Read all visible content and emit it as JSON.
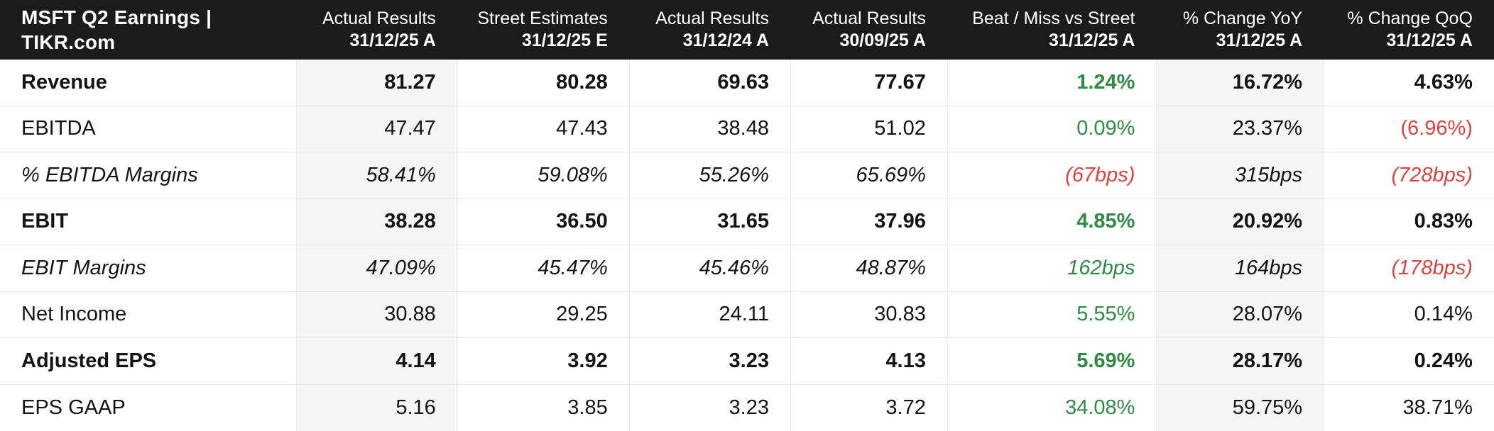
{
  "colors": {
    "header_bg": "#1b1b1b",
    "header_text": "#ffffff",
    "positive": "#2e8b46",
    "negative": "#d9453f",
    "column_shade": "#f5f5f5",
    "row_divider": "#e9e9e9"
  },
  "chart_data": {
    "type": "table",
    "title": "MSFT Q2 Earnings | TIKR.com",
    "columns": [
      {
        "label": "Actual Results",
        "sub": "31/12/25 A"
      },
      {
        "label": "Street Estimates",
        "sub": "31/12/25 E"
      },
      {
        "label": "Actual Results",
        "sub": "31/12/24 A"
      },
      {
        "label": "Actual Results",
        "sub": "30/09/25 A"
      },
      {
        "label": "Beat / Miss vs Street",
        "sub": "31/12/25 A"
      },
      {
        "label": "% Change YoY",
        "sub": "31/12/25 A"
      },
      {
        "label": "% Change QoQ",
        "sub": "31/12/25 A"
      }
    ],
    "rows": [
      {
        "label": "Revenue",
        "style": "bold",
        "values": [
          "81.27",
          "80.28",
          "69.63",
          "77.67",
          "1.24%",
          "16.72%",
          "4.63%"
        ]
      },
      {
        "label": "EBITDA",
        "style": "normal",
        "values": [
          "47.47",
          "47.43",
          "38.48",
          "51.02",
          "0.09%",
          "23.37%",
          "(6.96%)"
        ]
      },
      {
        "label": "% EBITDA Margins",
        "style": "italic",
        "values": [
          "58.41%",
          "59.08%",
          "55.26%",
          "65.69%",
          "(67bps)",
          "315bps",
          "(728bps)"
        ]
      },
      {
        "label": "EBIT",
        "style": "bold",
        "values": [
          "38.28",
          "36.50",
          "31.65",
          "37.96",
          "4.85%",
          "20.92%",
          "0.83%"
        ]
      },
      {
        "label": "EBIT Margins",
        "style": "italic",
        "values": [
          "47.09%",
          "45.47%",
          "45.46%",
          "48.87%",
          "162bps",
          "164bps",
          "(178bps)"
        ]
      },
      {
        "label": "Net Income",
        "style": "normal",
        "values": [
          "30.88",
          "29.25",
          "24.11",
          "30.83",
          "5.55%",
          "28.07%",
          "0.14%"
        ]
      },
      {
        "label": "Adjusted EPS",
        "style": "bold",
        "values": [
          "4.14",
          "3.92",
          "3.23",
          "4.13",
          "5.69%",
          "28.17%",
          "0.24%"
        ]
      },
      {
        "label": "EPS GAAP",
        "style": "normal",
        "values": [
          "5.16",
          "3.85",
          "3.23",
          "3.72",
          "34.08%",
          "59.75%",
          "38.71%"
        ]
      }
    ]
  }
}
